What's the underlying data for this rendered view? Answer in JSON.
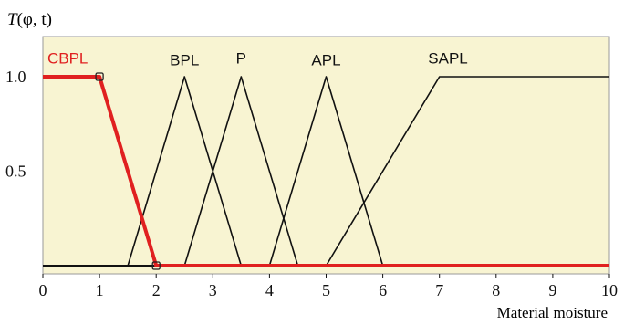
{
  "chart_data": {
    "type": "line",
    "ylabel_prefix": "T",
    "ylabel_args": "(φ, t)",
    "xlabel": "Material moisture",
    "xlim": [
      0,
      10
    ],
    "ylim": [
      0,
      1
    ],
    "x_ticks": [
      "0",
      "1",
      "2",
      "3",
      "4",
      "5",
      "6",
      "7",
      "8",
      "9",
      "10"
    ],
    "y_ticks": [
      {
        "value": 1.0,
        "label": "1.0"
      },
      {
        "value": 0.5,
        "label": "0.5"
      }
    ],
    "grid": false,
    "background_color": "#f8f4d2",
    "series": [
      {
        "name": "CBPL",
        "color": "#e02020",
        "points": [
          [
            0,
            1
          ],
          [
            1,
            1
          ],
          [
            2,
            0
          ],
          [
            10,
            0
          ]
        ],
        "markers": [
          [
            1,
            1
          ],
          [
            2,
            0
          ]
        ]
      },
      {
        "name": "BPL",
        "color": "#111111",
        "points": [
          [
            1.5,
            0
          ],
          [
            2.5,
            1
          ],
          [
            3.5,
            0
          ]
        ]
      },
      {
        "name": "P",
        "color": "#111111",
        "points": [
          [
            2.5,
            0
          ],
          [
            3.5,
            1
          ],
          [
            4.5,
            0
          ]
        ]
      },
      {
        "name": "APL",
        "color": "#111111",
        "points": [
          [
            4,
            0
          ],
          [
            5,
            1
          ],
          [
            6,
            0
          ]
        ]
      },
      {
        "name": "SAPL",
        "color": "#111111",
        "points": [
          [
            5,
            0
          ],
          [
            7,
            1
          ],
          [
            10,
            1
          ]
        ]
      }
    ],
    "baseline": {
      "color": "#111111",
      "points": [
        [
          0,
          0
        ],
        [
          10,
          0
        ]
      ]
    }
  }
}
